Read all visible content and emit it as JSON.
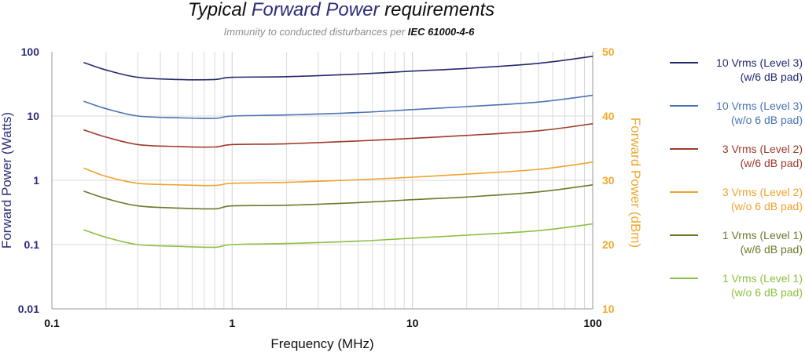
{
  "chart_data": {
    "type": "line",
    "title": {
      "part1": "Typical ",
      "part2": "Forward Power",
      "part3": " requirements",
      "color_main": "#111111",
      "color_accent": "#2b2d7a"
    },
    "subtitle": {
      "prefix": "Immunity to conducted disturbances per ",
      "standard": "IEC 61000-4-6"
    },
    "xlabel": "Frequency (MHz)",
    "ylabel_left": "Forward Power (Watts)",
    "ylabel_right": "Forward Power (dBm)",
    "x_scale": "log",
    "y_scale": "log",
    "xlim": [
      0.1,
      100
    ],
    "ylim_left": [
      0.01,
      100
    ],
    "ylim_right": [
      10,
      50
    ],
    "x_ticks": [
      "0.1",
      "1",
      "10",
      "100"
    ],
    "y_ticks_left": [
      "0.01",
      "0.1",
      "1",
      "10",
      "100"
    ],
    "y_ticks_right": [
      "10",
      "20",
      "30",
      "40",
      "50"
    ],
    "grid": "vertical minor log gridlines",
    "legend_position": "right",
    "x": [
      0.15,
      0.2,
      0.3,
      0.5,
      0.8,
      1,
      2,
      5,
      10,
      20,
      50,
      100
    ],
    "series": [
      {
        "name_line1": "10 Vrms (Level 3)",
        "name_line2": "(w/6 dB pad)",
        "color": "#232a6e",
        "values": [
          68,
          52,
          40,
          37,
          37,
          40,
          41,
          45,
          50,
          55,
          66,
          85
        ]
      },
      {
        "name_line1": "10 Vrms (Level 3)",
        "name_line2": "(w/o 6 dB pad)",
        "color": "#4a72b4",
        "values": [
          17,
          13,
          10,
          9.4,
          9.2,
          10,
          10.4,
          11.3,
          12.6,
          14,
          16.5,
          21
        ]
      },
      {
        "name_line1": "3 Vrms (Level 2)",
        "name_line2": "(w/6 dB pad)",
        "color": "#a03a2a",
        "values": [
          6.1,
          4.7,
          3.6,
          3.35,
          3.3,
          3.6,
          3.7,
          4.1,
          4.5,
          5,
          5.9,
          7.6
        ]
      },
      {
        "name_line1": "3 Vrms (Level 2)",
        "name_line2": "(w/o 6 dB pad)",
        "color": "#f0a22e",
        "values": [
          1.55,
          1.15,
          0.9,
          0.85,
          0.83,
          0.9,
          0.93,
          1.02,
          1.12,
          1.25,
          1.48,
          1.92
        ]
      },
      {
        "name_line1": "1 Vrms (Level 1)",
        "name_line2": "(w/6 dB pad)",
        "color": "#6b7a2a",
        "values": [
          0.68,
          0.52,
          0.4,
          0.37,
          0.36,
          0.4,
          0.41,
          0.45,
          0.5,
          0.55,
          0.66,
          0.85
        ]
      },
      {
        "name_line1": "1 Vrms (Level 1)",
        "name_line2": "(w/o 6 dB pad)",
        "color": "#8cc040",
        "values": [
          0.17,
          0.13,
          0.1,
          0.094,
          0.091,
          0.1,
          0.104,
          0.113,
          0.126,
          0.14,
          0.165,
          0.21
        ]
      }
    ],
    "colors": {
      "left_axis": "#2b2d7a",
      "right_axis": "#f0a830",
      "x_axis_text": "#111111",
      "grid": "#d9d9d9"
    }
  }
}
